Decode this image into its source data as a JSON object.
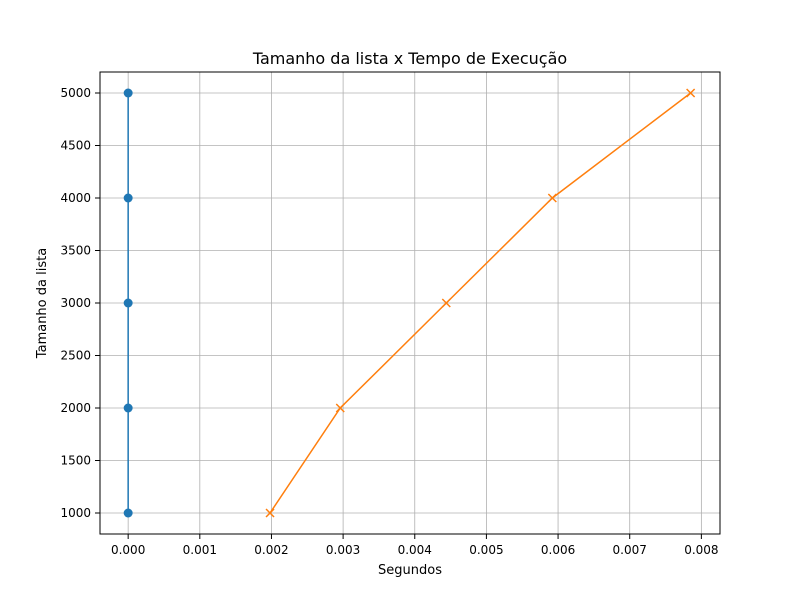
{
  "chart_data": {
    "type": "line",
    "title": "Tamanho da lista x Tempo de Execução",
    "xlabel": "Segundos",
    "ylabel": "Tamanho da lista",
    "xlim": [
      -0.000393,
      0.00826
    ],
    "ylim": [
      800,
      5200
    ],
    "xticks": [
      0.0,
      0.001,
      0.002,
      0.003,
      0.004,
      0.005,
      0.006,
      0.007,
      0.008
    ],
    "xtick_labels": [
      "0.000",
      "0.001",
      "0.002",
      "0.003",
      "0.004",
      "0.005",
      "0.006",
      "0.007",
      "0.008"
    ],
    "yticks": [
      1000,
      1500,
      2000,
      2500,
      3000,
      3500,
      4000,
      4500,
      5000
    ],
    "ytick_labels": [
      "1000",
      "1500",
      "2000",
      "2500",
      "3000",
      "3500",
      "4000",
      "4500",
      "5000"
    ],
    "grid": true,
    "series": [
      {
        "color": "#1f77b4",
        "marker": "circle",
        "x": [
          0.0,
          0.0,
          0.0,
          0.0,
          0.0
        ],
        "y": [
          1000,
          2000,
          3000,
          4000,
          5000
        ]
      },
      {
        "color": "#ff7f0e",
        "marker": "x",
        "x": [
          0.00198,
          0.00296,
          0.00444,
          0.00592,
          0.00785
        ],
        "y": [
          1000,
          2000,
          3000,
          4000,
          5000
        ]
      }
    ]
  }
}
